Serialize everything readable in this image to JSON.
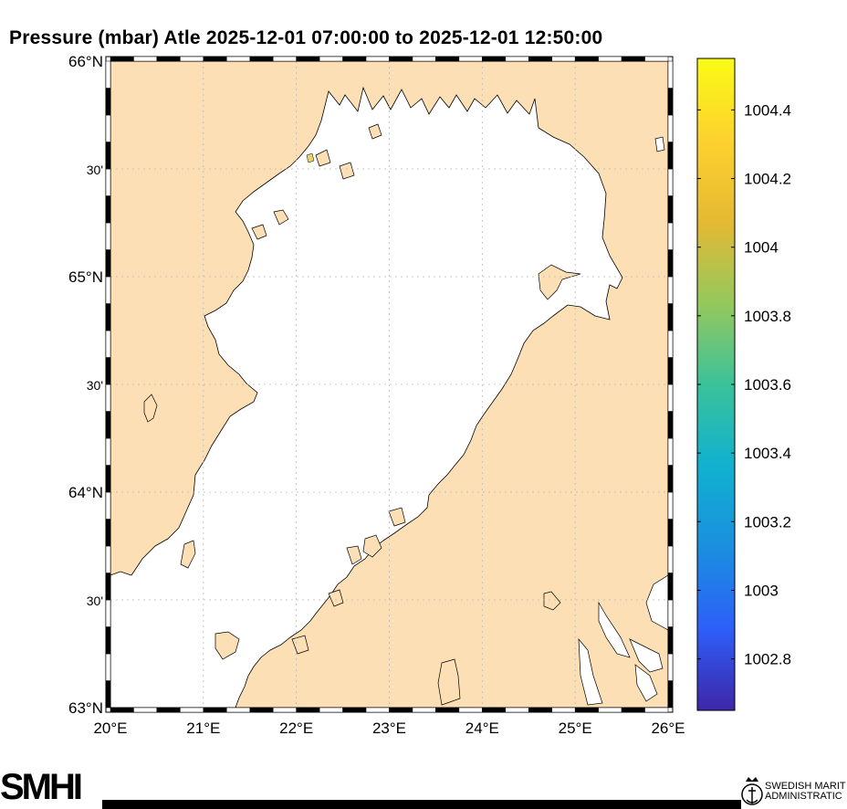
{
  "title": "Pressure (mbar)  Atle 2025-12-01 07:00:00  to  2025-12-01 12:50:00",
  "map": {
    "lat_range": [
      63,
      66
    ],
    "lon_range": [
      20,
      26
    ],
    "lat_ticks": [
      {
        "value": 66,
        "label": "66°N"
      },
      {
        "value": 65.5,
        "label": "30'"
      },
      {
        "value": 65,
        "label": "65°N"
      },
      {
        "value": 64.5,
        "label": "30'"
      },
      {
        "value": 64,
        "label": "64°N"
      },
      {
        "value": 63.5,
        "label": "30'"
      },
      {
        "value": 63,
        "label": "63°N"
      }
    ],
    "lon_ticks": [
      {
        "value": 20,
        "label": "20°E"
      },
      {
        "value": 21,
        "label": "21°E"
      },
      {
        "value": 22,
        "label": "22°E"
      },
      {
        "value": 23,
        "label": "23°E"
      },
      {
        "value": 24,
        "label": "24°E"
      },
      {
        "value": 25,
        "label": "25°E"
      },
      {
        "value": 26,
        "label": "26°E"
      }
    ],
    "land_color": "#fcdfb4",
    "sea_color": "#ffffff",
    "grid": true
  },
  "colorbar": {
    "min": 1002.65,
    "max": 1004.55,
    "ticks": [
      {
        "value": 1004.4,
        "label": "1004.4"
      },
      {
        "value": 1004.2,
        "label": "1004.2"
      },
      {
        "value": 1004,
        "label": "1004"
      },
      {
        "value": 1003.8,
        "label": "1003.8"
      },
      {
        "value": 1003.6,
        "label": "1003.6"
      },
      {
        "value": 1003.4,
        "label": "1003.4"
      },
      {
        "value": 1003.2,
        "label": "1003.2"
      },
      {
        "value": 1003,
        "label": "1003"
      },
      {
        "value": 1002.8,
        "label": "1002.8"
      }
    ],
    "colormap": [
      "#3e26a8",
      "#2d5ff9",
      "#1b8fdf",
      "#10b1cf",
      "#3bc29a",
      "#95c85c",
      "#e5b933",
      "#fdd22e",
      "#f9fb15"
    ]
  },
  "footer": {
    "logo_text": "SMHI",
    "partner_text_line1": "SWEDISH MARIT",
    "partner_text_line2": "ADMINISTRATIC",
    "partner_emblem": "crown-anchor-emblem-icon"
  }
}
